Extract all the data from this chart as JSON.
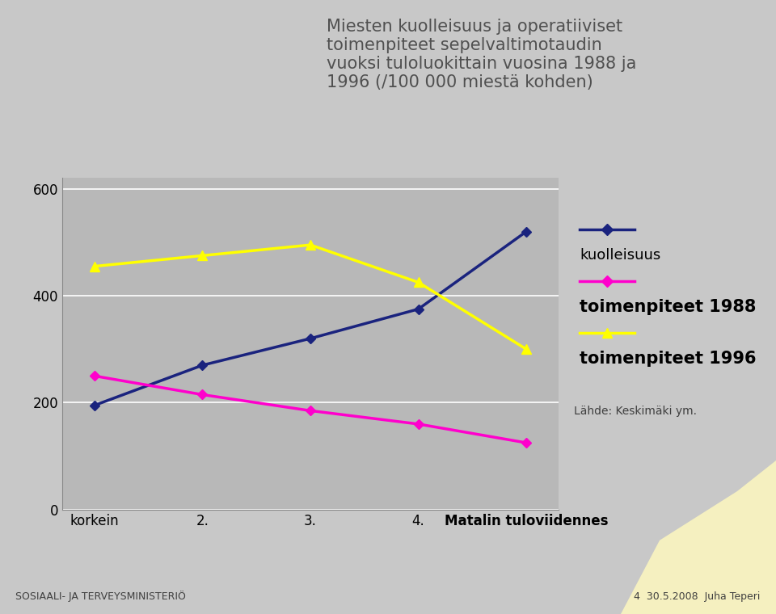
{
  "title_line1": "Miesten kuolleisuus ja operatiiviset",
  "title_line2": "toimenpiteet sepelvaltimotaudin",
  "title_line3": "vuoksi tuloluokittain vuosina 1988 ja",
  "title_line4": "1996 (/100 000 miestä kohden)",
  "categories": [
    "korkein",
    "2.",
    "3.",
    "4.",
    "Matalin tuloviidennes"
  ],
  "kuolleisuus": [
    195,
    270,
    320,
    375,
    520
  ],
  "toimenpiteet_1988": [
    250,
    215,
    185,
    160,
    125
  ],
  "toimenpiteet_1996": [
    455,
    475,
    495,
    425,
    300
  ],
  "line_color_kuolleisuus": "#1a237e",
  "line_color_toimenpiteet_1988": "#ff00cc",
  "line_color_toimenpiteet_1996": "#ffff00",
  "ylim": [
    0,
    620
  ],
  "yticks": [
    0,
    200,
    400,
    600
  ],
  "bg_color": "#c8c8c8",
  "plot_bg_color": "#b8b8b8",
  "title_color": "#505050",
  "footer_left": "SOSIAALI- JA TERVEYSMINISTERIÖ",
  "footer_right": "4  30.5.2008  Juha Teperi",
  "source_text": "Lähde: Keskimäki ym.",
  "legend_kuolleisuus": "kuolleisuus",
  "legend_1988": "toimenpiteet 1988",
  "legend_1996": "toimenpiteet 1996"
}
